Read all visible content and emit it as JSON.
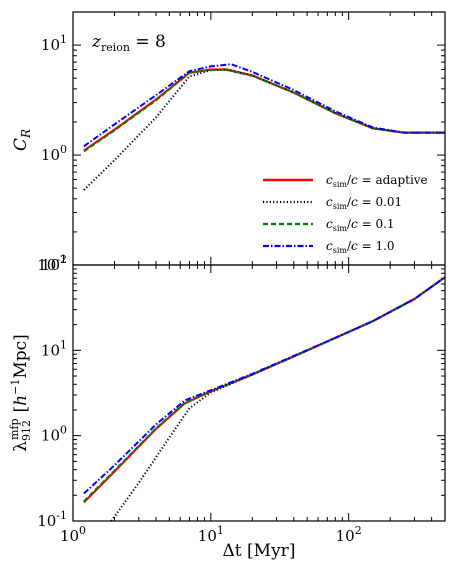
{
  "chart_data": [
    {
      "type": "line",
      "ylabel": "C_R",
      "yscale": "log",
      "xscale": "log",
      "xlim": [
        1,
        500
      ],
      "ylim": [
        0.1,
        20
      ],
      "annotation": "z_reion = 8",
      "legend_position": "lower-right",
      "yticks": [
        {
          "value": 0.1,
          "label": "10^-1"
        },
        {
          "value": 1,
          "label": "10^0"
        },
        {
          "value": 10,
          "label": "10^1"
        }
      ],
      "series": [
        {
          "name": "c_sim/c = adaptive",
          "color": "#ff0000",
          "style": "solid",
          "x": [
            1.2,
            2,
            4,
            7,
            10,
            13,
            20,
            40,
            80,
            150,
            250,
            500
          ],
          "y": [
            1.1,
            1.7,
            3.2,
            5.6,
            6.0,
            6.0,
            5.3,
            3.7,
            2.4,
            1.75,
            1.6,
            1.6
          ]
        },
        {
          "name": "c_sim/c = 0.01",
          "color": "#000000",
          "style": "dotted",
          "x": [
            1.2,
            2,
            4,
            7,
            10,
            13,
            20,
            40,
            80,
            150,
            250,
            500
          ],
          "y": [
            0.48,
            0.9,
            2.2,
            5.2,
            5.9,
            6.0,
            5.3,
            3.7,
            2.4,
            1.75,
            1.6,
            1.6
          ]
        },
        {
          "name": "c_sim/c = 0.1",
          "color": "#008000",
          "style": "dashed",
          "x": [
            1.2,
            2,
            4,
            7,
            10,
            13,
            20,
            40,
            80,
            150,
            250,
            500
          ],
          "y": [
            1.08,
            1.68,
            3.15,
            5.6,
            5.95,
            5.95,
            5.25,
            3.7,
            2.4,
            1.75,
            1.6,
            1.6
          ]
        },
        {
          "name": "c_sim/c = 1.0",
          "color": "#0000ff",
          "style": "dashdot",
          "x": [
            1.2,
            2,
            4,
            7,
            10,
            14,
            20,
            40,
            80,
            150,
            250,
            500
          ],
          "y": [
            1.2,
            1.9,
            3.5,
            5.8,
            6.4,
            6.7,
            5.7,
            3.9,
            2.5,
            1.78,
            1.6,
            1.6
          ]
        }
      ],
      "legend": [
        {
          "text": "c_sim/c = adaptive",
          "color": "#ff0000",
          "style": "solid"
        },
        {
          "text": "c_sim/c = 0.01",
          "color": "#000000",
          "style": "dotted"
        },
        {
          "text": "c_sim/c = 0.1",
          "color": "#008000",
          "style": "dashed"
        },
        {
          "text": "c_sim/c = 1.0",
          "color": "#0000ff",
          "style": "dashdot"
        }
      ]
    },
    {
      "type": "line",
      "xlabel": "Δt [Myr]",
      "ylabel": "λ_912^mfp [h^-1 Mpc]",
      "yscale": "log",
      "xscale": "log",
      "xlim": [
        1,
        500
      ],
      "ylim": [
        0.1,
        100
      ],
      "xticks": [
        {
          "value": 1,
          "label": "10^0"
        },
        {
          "value": 10,
          "label": "10^1"
        },
        {
          "value": 100,
          "label": "10^2"
        }
      ],
      "yticks": [
        {
          "value": 0.1,
          "label": "10^-1"
        },
        {
          "value": 1,
          "label": "10^0"
        },
        {
          "value": 10,
          "label": "10^1"
        },
        {
          "value": 100,
          "label": "10^2"
        }
      ],
      "series": [
        {
          "name": "c_sim/c = adaptive",
          "color": "#ff0000",
          "style": "solid",
          "x": [
            1.2,
            2,
            4,
            6.5,
            10,
            20,
            40,
            80,
            150,
            300,
            500
          ],
          "y": [
            0.165,
            0.38,
            1.2,
            2.4,
            3.3,
            5.2,
            8.5,
            14,
            22,
            40,
            72
          ]
        },
        {
          "name": "c_sim/c = 0.01",
          "color": "#000000",
          "style": "dotted",
          "x": [
            1.9,
            3,
            5,
            7,
            10,
            20,
            40,
            80,
            150,
            300,
            500
          ],
          "y": [
            0.1,
            0.28,
            0.95,
            2.1,
            3.2,
            5.2,
            8.5,
            14,
            22,
            40,
            72
          ]
        },
        {
          "name": "c_sim/c = 0.1",
          "color": "#008000",
          "style": "dashed",
          "x": [
            1.2,
            2,
            4,
            6.5,
            10,
            20,
            40,
            80,
            150,
            300,
            500
          ],
          "y": [
            0.17,
            0.39,
            1.22,
            2.45,
            3.3,
            5.2,
            8.5,
            14,
            22,
            40,
            72
          ]
        },
        {
          "name": "c_sim/c = 1.0",
          "color": "#0000ff",
          "style": "dashdot",
          "x": [
            1.2,
            2,
            4,
            6.5,
            10,
            20,
            40,
            80,
            150,
            300,
            500
          ],
          "y": [
            0.21,
            0.45,
            1.35,
            2.6,
            3.4,
            5.3,
            8.6,
            14,
            22,
            40,
            72
          ]
        }
      ]
    }
  ]
}
